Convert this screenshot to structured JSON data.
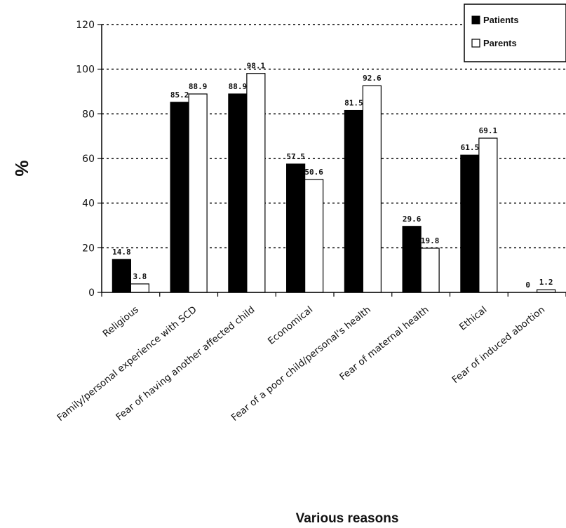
{
  "chart_data": {
    "type": "bar",
    "title": "",
    "xlabel": "Various reasons",
    "ylabel": "%",
    "ylim": [
      0,
      120
    ],
    "yticks": [
      0,
      20,
      40,
      60,
      80,
      100,
      120
    ],
    "grid": "dotted horizontal",
    "legend_position": "top-right",
    "categories": [
      "Religious",
      "Family/personal experience with SCD",
      "Fear of having another affected child",
      "Economical",
      "Fear of a poor child/personal's health",
      "Fear of maternal health",
      "Ethical",
      "Fear of induced abortion"
    ],
    "series": [
      {
        "name": "Patients",
        "color": "#000000",
        "values": [
          14.8,
          85.2,
          88.9,
          57.5,
          81.5,
          29.6,
          61.5,
          0
        ],
        "labels": [
          "14.8",
          "85.2",
          "88.9",
          "57.5",
          "81.5",
          "29.6",
          "61.5",
          "0"
        ]
      },
      {
        "name": "Parents",
        "color": "#ffffff",
        "values": [
          3.8,
          88.9,
          98.1,
          50.6,
          92.6,
          19.8,
          69.1,
          1.2
        ],
        "labels": [
          "3.8",
          "88.9",
          "98.1",
          "50.6",
          "92.6",
          "19.8",
          "69.1",
          "1.2"
        ]
      }
    ]
  }
}
